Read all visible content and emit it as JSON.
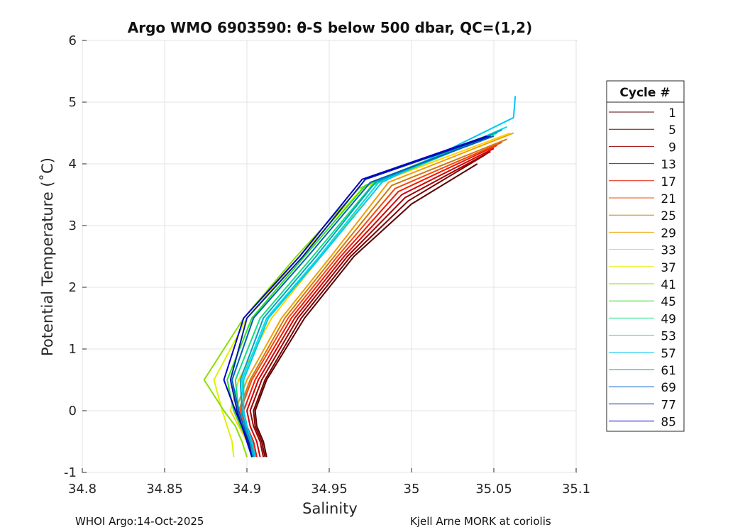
{
  "chart_data": {
    "type": "line",
    "title": "Argo WMO 6903590: θ-S below 500 dbar,  QC=(1,2)",
    "xlabel": "Salinity",
    "ylabel": "Potential Temperature (˚C)",
    "xlim": [
      34.8,
      35.1
    ],
    "ylim": [
      -1,
      6
    ],
    "xticks": [
      "34.8",
      "34.85",
      "34.9",
      "34.95",
      "35",
      "35.05",
      "35.1"
    ],
    "yticks": [
      "-1",
      "0",
      "1",
      "2",
      "3",
      "4",
      "5",
      "6"
    ],
    "grid": true,
    "legend": {
      "title": "Cycle #",
      "placement": "outside-right"
    },
    "series": [
      {
        "name": "1",
        "color": "#5a0000",
        "x": [
          34.912,
          34.91,
          34.906,
          34.905,
          34.912,
          34.935,
          34.965,
          35.0,
          35.04
        ],
        "y": [
          -0.75,
          -0.5,
          -0.25,
          0.0,
          0.5,
          1.5,
          2.5,
          3.35,
          4.0
        ]
      },
      {
        "name": "5",
        "color": "#7d0000",
        "x": [
          34.911,
          34.909,
          34.905,
          34.904,
          34.911,
          34.933,
          34.963,
          34.998,
          35.045
        ],
        "y": [
          -0.75,
          -0.5,
          -0.25,
          0.0,
          0.5,
          1.5,
          2.5,
          3.4,
          4.15
        ]
      },
      {
        "name": "9",
        "color": "#a00000",
        "x": [
          34.91,
          34.908,
          34.904,
          34.902,
          34.909,
          34.931,
          34.961,
          34.996,
          35.048
        ],
        "y": [
          -0.75,
          -0.5,
          -0.25,
          0.0,
          0.5,
          1.5,
          2.5,
          3.45,
          4.2
        ]
      },
      {
        "name": "13",
        "color": "#d00000",
        "x": [
          34.908,
          34.906,
          34.902,
          34.9,
          34.907,
          34.929,
          34.959,
          34.994,
          35.05
        ],
        "y": [
          -0.75,
          -0.5,
          -0.25,
          0.0,
          0.5,
          1.5,
          2.5,
          3.5,
          4.25
        ]
      },
      {
        "name": "17",
        "color": "#ee1a00",
        "x": [
          34.906,
          34.904,
          34.9,
          34.898,
          34.905,
          34.927,
          34.957,
          34.992,
          35.052
        ],
        "y": [
          -0.75,
          -0.5,
          -0.25,
          0.0,
          0.5,
          1.5,
          2.5,
          3.55,
          4.3
        ]
      },
      {
        "name": "21",
        "color": "#f24a10",
        "x": [
          34.905,
          34.903,
          34.899,
          34.896,
          34.903,
          34.925,
          34.955,
          34.99,
          35.055
        ],
        "y": [
          -0.75,
          -0.5,
          -0.25,
          0.0,
          0.5,
          1.5,
          2.5,
          3.6,
          4.35
        ]
      },
      {
        "name": "25",
        "color": "#d07a10",
        "x": [
          34.905,
          34.902,
          34.898,
          34.895,
          34.902,
          34.923,
          34.953,
          34.988,
          35.058
        ],
        "y": [
          -0.75,
          -0.5,
          -0.25,
          0.0,
          0.5,
          1.5,
          2.5,
          3.65,
          4.4
        ]
      },
      {
        "name": "29",
        "color": "#f0a000",
        "x": [
          34.904,
          34.901,
          34.897,
          34.893,
          34.9,
          34.921,
          34.951,
          34.986,
          35.062
        ],
        "y": [
          -0.75,
          -0.5,
          -0.25,
          0.0,
          0.5,
          1.5,
          2.5,
          3.7,
          4.5
        ]
      },
      {
        "name": "33",
        "color": "#ffd200",
        "x": [
          34.904,
          34.9,
          34.895,
          34.89,
          34.895,
          34.915,
          34.945,
          34.98,
          35.06
        ],
        "y": [
          -0.75,
          -0.5,
          -0.25,
          0.0,
          0.5,
          1.5,
          2.5,
          3.7,
          4.5
        ]
      },
      {
        "name": "37",
        "color": "#e0f000",
        "x": [
          34.892,
          34.891,
          34.888,
          34.885,
          34.88,
          34.9,
          34.932,
          34.97,
          35.048
        ],
        "y": [
          -0.75,
          -0.5,
          -0.25,
          0.0,
          0.5,
          1.5,
          2.5,
          3.6,
          4.45
        ]
      },
      {
        "name": "41",
        "color": "#88e000",
        "x": [
          34.9,
          34.897,
          34.893,
          34.886,
          34.874,
          34.898,
          34.93,
          34.968,
          35.045
        ],
        "y": [
          -0.75,
          -0.5,
          -0.25,
          0.0,
          0.5,
          1.5,
          2.5,
          3.6,
          4.45
        ]
      },
      {
        "name": "45",
        "color": "#30e020",
        "x": [
          34.903,
          34.901,
          34.896,
          34.892,
          34.888,
          34.903,
          34.935,
          34.972,
          35.05
        ],
        "y": [
          -0.75,
          -0.5,
          -0.25,
          0.0,
          0.5,
          1.5,
          2.5,
          3.65,
          4.5
        ]
      },
      {
        "name": "49",
        "color": "#10e080",
        "x": [
          34.904,
          34.902,
          34.898,
          34.895,
          34.893,
          34.908,
          34.94,
          34.976,
          35.052
        ],
        "y": [
          -0.75,
          -0.5,
          -0.25,
          0.0,
          0.5,
          1.5,
          2.5,
          3.65,
          4.5
        ]
      },
      {
        "name": "53",
        "color": "#00e0e0",
        "x": [
          34.905,
          34.903,
          34.9,
          34.898,
          34.897,
          34.912,
          34.944,
          34.98,
          35.058
        ],
        "y": [
          -0.75,
          -0.5,
          -0.25,
          0.0,
          0.5,
          1.5,
          2.5,
          3.7,
          4.6
        ]
      },
      {
        "name": "57",
        "color": "#00c8f0",
        "x": [
          34.905,
          34.903,
          34.9,
          34.898,
          34.898,
          34.913,
          34.945,
          34.982,
          35.062,
          35.063
        ],
        "y": [
          -0.75,
          -0.5,
          -0.25,
          0.0,
          0.5,
          1.5,
          2.5,
          3.7,
          4.75,
          5.1
        ]
      },
      {
        "name": "61",
        "color": "#00a0c8",
        "x": [
          34.904,
          34.902,
          34.899,
          34.897,
          34.896,
          34.91,
          34.942,
          34.978,
          35.055
        ],
        "y": [
          -0.75,
          -0.5,
          -0.25,
          0.0,
          0.5,
          1.5,
          2.5,
          3.7,
          4.55
        ]
      },
      {
        "name": "69",
        "color": "#0060c0",
        "x": [
          34.903,
          34.901,
          34.898,
          34.895,
          34.891,
          34.904,
          34.937,
          34.975,
          35.05
        ],
        "y": [
          -0.75,
          -0.5,
          -0.25,
          0.0,
          0.5,
          1.5,
          2.5,
          3.7,
          4.45
        ]
      },
      {
        "name": "77",
        "color": "#0020a0",
        "x": [
          34.903,
          34.901,
          34.897,
          34.894,
          34.89,
          34.9,
          34.934,
          34.972,
          35.048
        ],
        "y": [
          -0.75,
          -0.5,
          -0.25,
          0.0,
          0.5,
          1.5,
          2.5,
          3.75,
          4.45
        ]
      },
      {
        "name": "85",
        "color": "#0000c8",
        "x": [
          34.903,
          34.9,
          34.897,
          34.893,
          34.886,
          34.898,
          34.932,
          34.97,
          35.046
        ],
        "y": [
          -0.75,
          -0.5,
          -0.25,
          0.0,
          0.5,
          1.5,
          2.5,
          3.75,
          4.45
        ]
      }
    ]
  },
  "footer": {
    "left": "WHOI Argo:14-Oct-2025",
    "right": "Kjell Arne MORK at coriolis"
  }
}
